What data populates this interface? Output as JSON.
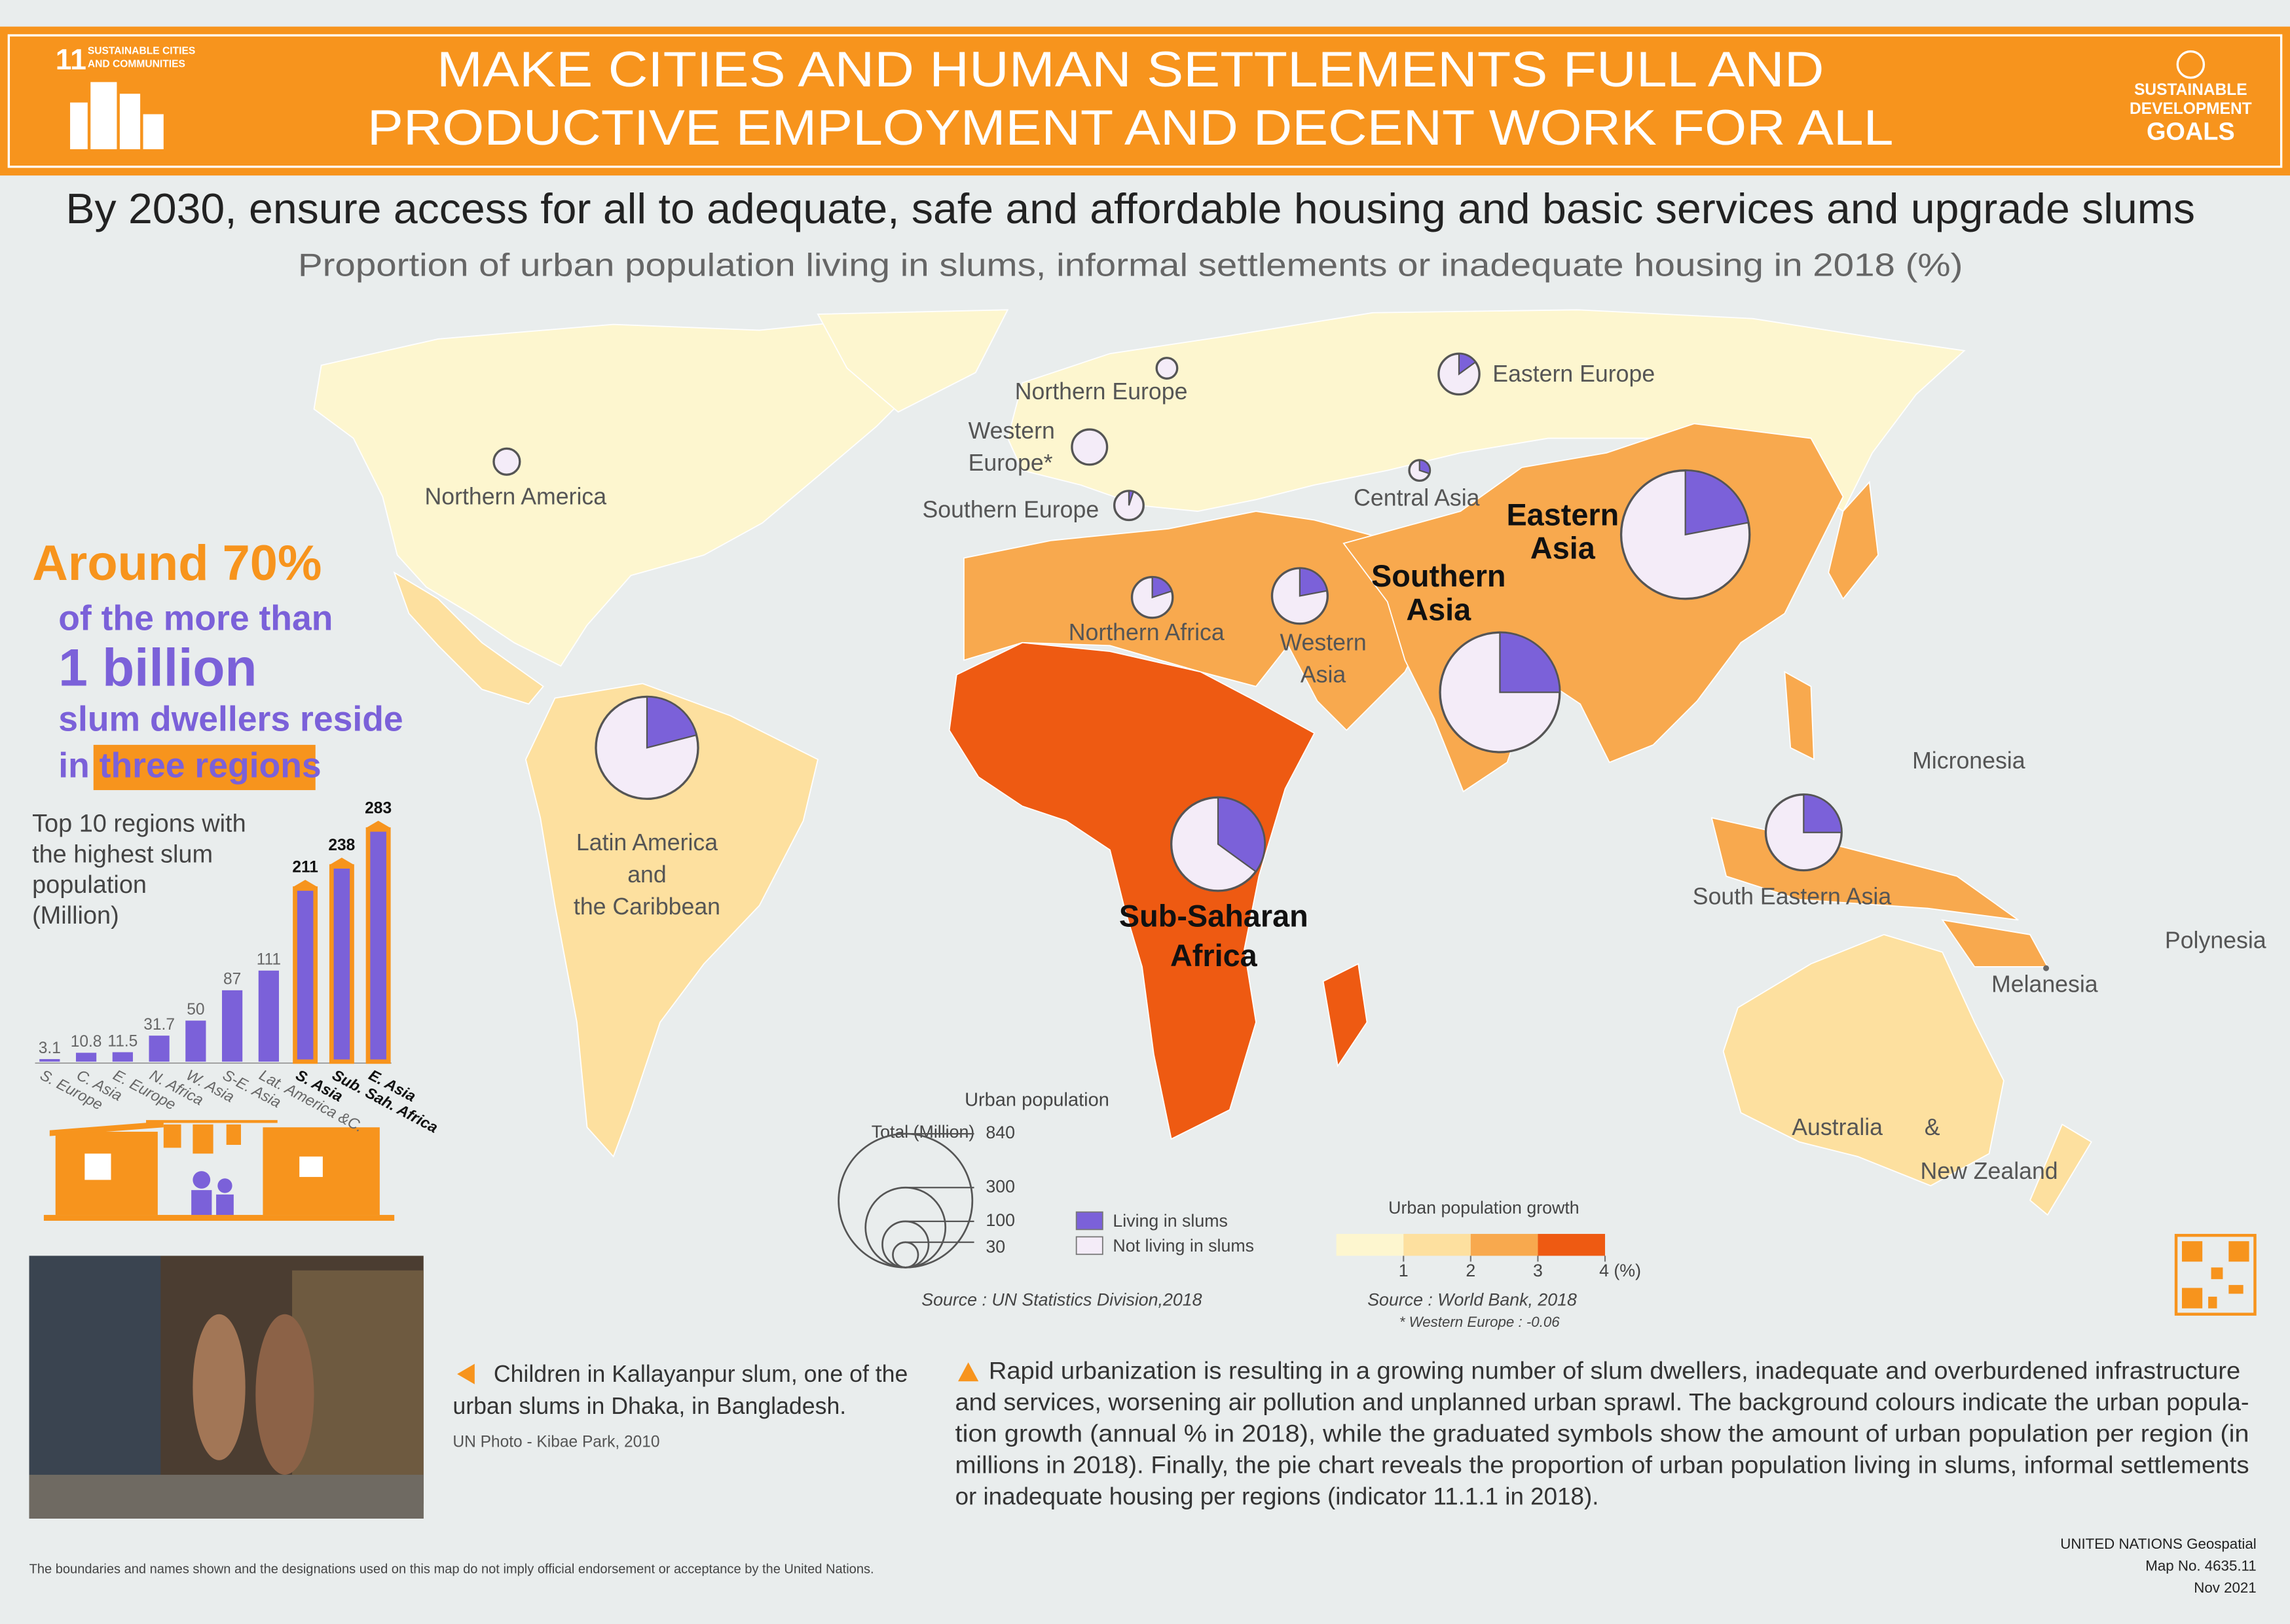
{
  "header": {
    "goal_number": "11",
    "goal_name_lines": [
      "SUSTAINABLE CITIES",
      "AND COMMUNITIES"
    ],
    "title_lines": [
      "MAKE CITIES AND HUMAN SETTLEMENTS FULL AND",
      "PRODUCTIVE EMPLOYMENT AND DECENT WORK FOR ALL"
    ],
    "sdg_logo_lines": [
      "SUSTAINABLE",
      "DEVELOPMENT",
      "GOALS"
    ]
  },
  "headline": "By 2030, ensure access for all to adequate, safe and affordable housing and basic services and upgrade slums",
  "callout": {
    "lines": [
      "Around 70%",
      "of the more than",
      "1 billion",
      "slum dwellers reside",
      "in"
    ],
    "highlight": "three regions"
  },
  "chart_data": [
    {
      "type": "pie-map",
      "title": "Proportion of urban population living in slums, informal settlements or inadequate housing in 2018 (%)",
      "pies": [
        {
          "label_lines": [
            "Northern America"
          ],
          "slum_pct": 0,
          "urban_pop": 32
        },
        {
          "label_lines": [
            "Northern Europe"
          ],
          "slum_pct": 0,
          "urban_pop": 20
        },
        {
          "label_lines": [
            "Western",
            "Europe*"
          ],
          "slum_pct": 0,
          "urban_pop": 58
        },
        {
          "label_lines": [
            "Southern Europe"
          ],
          "slum_pct": 5,
          "urban_pop": 40
        },
        {
          "label_lines": [
            "Eastern Europe"
          ],
          "slum_pct": 15,
          "urban_pop": 78
        },
        {
          "label_lines": [
            "Central Asia"
          ],
          "slum_pct": 30,
          "urban_pop": 20
        },
        {
          "label_lines": [
            "Eastern",
            "Asia"
          ],
          "slum_pct": 22,
          "urban_pop": 775
        },
        {
          "label_lines": [
            "Southern",
            "Asia"
          ],
          "slum_pct": 25,
          "urban_pop": 673
        },
        {
          "label_lines": [
            "Western",
            "Asia"
          ],
          "slum_pct": 22,
          "urban_pop": 145
        },
        {
          "label_lines": [
            "Northern Africa"
          ],
          "slum_pct": 20,
          "urban_pop": 78
        },
        {
          "label_lines": [
            "Sub-Saharan",
            "Africa"
          ],
          "slum_pct": 35,
          "urban_pop": 410
        },
        {
          "label_lines": [
            "Latin America",
            "and",
            "the Caribbean"
          ],
          "slum_pct": 21,
          "urban_pop": 490
        },
        {
          "label_lines": [
            "South Eastern Asia"
          ],
          "slum_pct": 25,
          "urban_pop": 270
        }
      ],
      "labels": [
        {
          "label_lines": [
            "Micronesia"
          ]
        },
        {
          "label_lines": [
            "Polynesia"
          ]
        },
        {
          "label_lines": [
            "Melanesia"
          ]
        },
        {
          "label_lines": [
            "Australia",
            "&",
            "New Zealand"
          ]
        }
      ],
      "size_legend": {
        "title": "Urban population",
        "subtitle": "Total (Million)",
        "ticks": [
          840,
          300,
          100,
          30
        ]
      },
      "pie_legend": [
        {
          "name": "Living in slums",
          "color": "#7b61d9"
        },
        {
          "name": "Not living in slums",
          "color": "#f4ecf8"
        }
      ],
      "source": "Source : UN Statistics Division,2018",
      "color_scale": {
        "title": "Urban population growth",
        "ticks": [
          1,
          2,
          3,
          {
            "value": 4,
            "label": "4 (%)"
          }
        ],
        "colors": [
          "#fdf6cf",
          "#fde09f",
          "#f8a94e",
          "#ee5a12"
        ],
        "source": "Source :  World Bank, 2018",
        "note": "* Western Europe : -0.06"
      }
    },
    {
      "type": "bar",
      "title_lines": [
        "Top 10 regions with",
        "the highest slum",
        "population",
        "(Million)"
      ],
      "categories": [
        "S. Europe",
        "C. Asia",
        "E. Europe",
        "N. Africa",
        "W. Asia",
        "S-E. Asia",
        "Lat. America &C.",
        "S. Asia",
        "Sub. Sah. Africa",
        "E. Asia"
      ],
      "values": [
        3.1,
        10.8,
        11.5,
        31.7,
        50,
        87,
        111,
        211,
        238,
        283
      ],
      "color": "#7b61d9",
      "highlight_color": "#f7941d"
    }
  ],
  "photo_caption": {
    "lines": [
      "Children in Kallayanpur slum, one of the",
      "urban slums in Dhaka, in Bangladesh."
    ],
    "credit": "UN Photo - Kibae Park, 2010"
  },
  "paragraph_lines": [
    "Rapid urbanization is resulting in a growing number of slum dwellers, inadequate and overburdened infrastructure",
    "and services, worsening air pollution and unplanned urban sprawl. The background colours indicate the urban popula-",
    "tion growth (annual % in 2018), while the graduated symbols show the amount of urban population per region (in",
    "millions in 2018). Finally, the pie chart reveals the proportion of urban population living in slums, informal settlements",
    "or inadequate housing per regions (indicator 11.1.1 in 2018)."
  ],
  "disclaimer": "The boundaries and names shown and the designations used on this map do not imply official endorsement or acceptance by the United Nations.",
  "map_info_lines": [
    "UNITED NATIONS Geospatial",
    "Map No. 4635.11",
    "Nov 2021"
  ]
}
